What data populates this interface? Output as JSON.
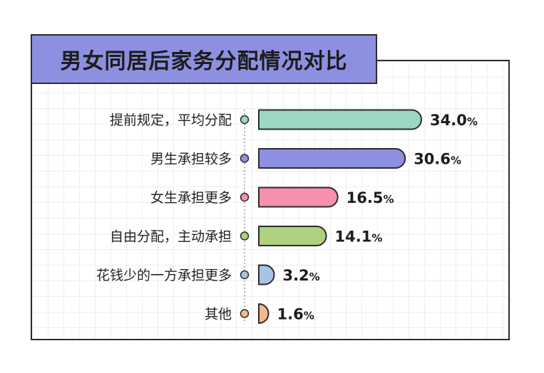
{
  "chart_data": {
    "type": "bar",
    "orientation": "horizontal",
    "title": "男女同居后家务分配情况对比",
    "categories": [
      "提前规定，平均分配",
      "男生承担较多",
      "女生承担更多",
      "自由分配，主动承担",
      "花钱少的一方承担更多",
      "其他"
    ],
    "values": [
      34.0,
      30.6,
      16.5,
      14.1,
      3.2,
      1.6
    ],
    "value_labels": [
      {
        "num": "34.0",
        "unit": "%"
      },
      {
        "num": "30.6",
        "unit": "%"
      },
      {
        "num": "16.5",
        "unit": "%"
      },
      {
        "num": "14.1",
        "unit": "%"
      },
      {
        "num": "3.2",
        "unit": "%"
      },
      {
        "num": "1.6",
        "unit": "%"
      }
    ],
    "colors": [
      "#9dd6c4",
      "#8d90e0",
      "#f590ad",
      "#aed07f",
      "#a9c3e6",
      "#f5b98a"
    ],
    "xlim": [
      0,
      34
    ],
    "grid": true,
    "legend": "none"
  }
}
